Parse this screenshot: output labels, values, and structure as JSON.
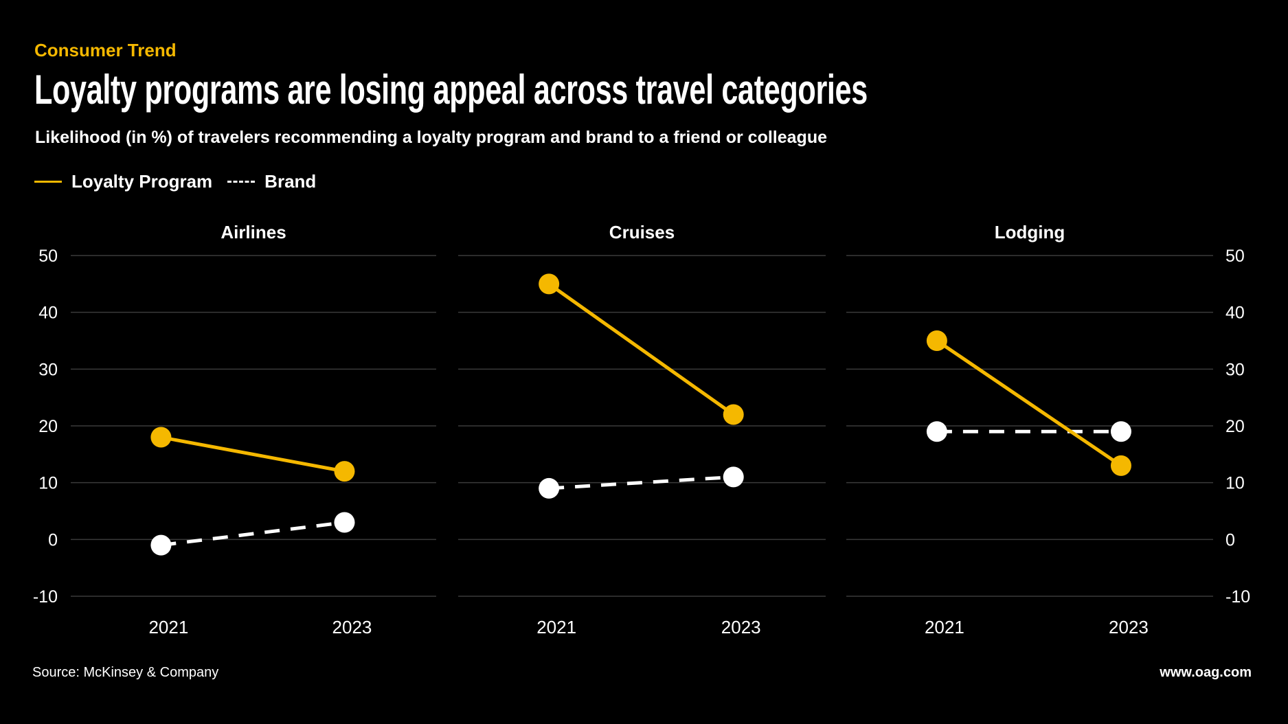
{
  "header": {
    "kicker": "Consumer Trend",
    "title": "Loyalty programs are losing appeal across travel categories",
    "subtitle": "Likelihood (in %) of travelers recommending a loyalty program and brand to a friend or colleague"
  },
  "legend": {
    "loyalty_label": "Loyalty Program",
    "brand_label": "Brand"
  },
  "footer": {
    "source": "Source: McKinsey & Company",
    "site": "www.oag.com"
  },
  "colors": {
    "loyalty": "#F5B800",
    "brand": "#FFFFFF",
    "background": "#000000",
    "grid": "#3a3a3a"
  },
  "chart_data": {
    "type": "line",
    "layout": "small-multiples",
    "categories": [
      "2021",
      "2023"
    ],
    "ylim": [
      -10,
      50
    ],
    "yticks": [
      "-10",
      "0",
      "10",
      "20",
      "30",
      "40",
      "50"
    ],
    "grid": true,
    "legend_position": "top-left",
    "panels": [
      {
        "title": "Airlines",
        "series": [
          {
            "name": "Loyalty Program",
            "values": [
              18,
              12
            ],
            "style": "solid"
          },
          {
            "name": "Brand",
            "values": [
              -1,
              3
            ],
            "style": "dashed"
          }
        ]
      },
      {
        "title": "Cruises",
        "series": [
          {
            "name": "Loyalty Program",
            "values": [
              45,
              22
            ],
            "style": "solid"
          },
          {
            "name": "Brand",
            "values": [
              9,
              11
            ],
            "style": "dashed"
          }
        ]
      },
      {
        "title": "Lodging",
        "series": [
          {
            "name": "Loyalty Program",
            "values": [
              35,
              13
            ],
            "style": "solid"
          },
          {
            "name": "Brand",
            "values": [
              19,
              19
            ],
            "style": "dashed"
          }
        ]
      }
    ]
  }
}
